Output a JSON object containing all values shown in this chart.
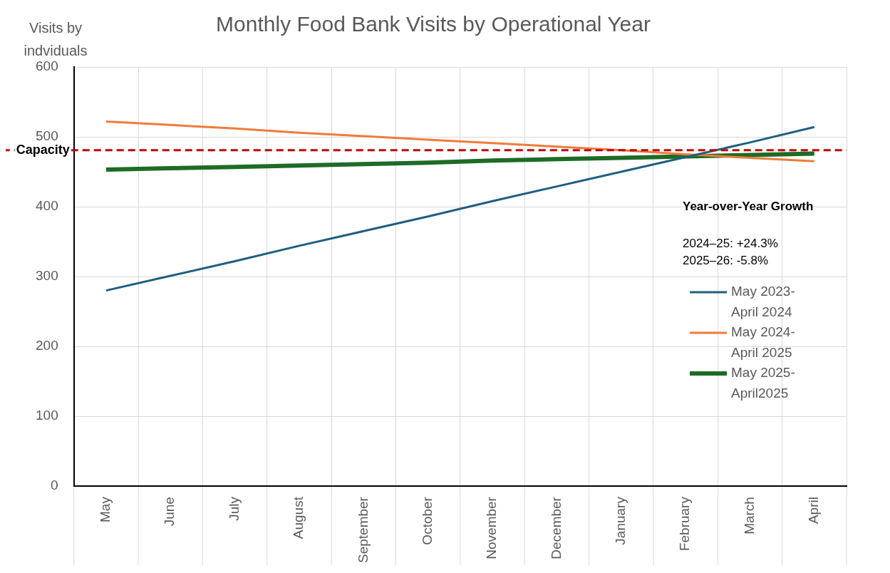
{
  "chart_data": {
    "type": "line",
    "title": "Monthly Food Bank Visits by Operational Year",
    "ylabel": "Visits by indviduals",
    "categories": [
      "May",
      "June",
      "July",
      "August",
      "September",
      "October",
      "November",
      "December",
      "January",
      "February",
      "March",
      "April"
    ],
    "series": [
      {
        "name": "May 2023-April 2024",
        "color": "#1f5f80",
        "values": [
          280,
          301,
          322,
          344,
          365,
          386,
          408,
          429,
          450,
          471,
          492,
          514
        ]
      },
      {
        "name": "May 2024-April 2025",
        "color": "#f07b3a",
        "values": [
          522,
          517,
          512,
          506,
          501,
          496,
          491,
          486,
          481,
          475,
          470,
          465
        ]
      },
      {
        "name": "May 2025-April2025",
        "color": "#1e6b26",
        "values": [
          453,
          455,
          457,
          459,
          461,
          463,
          466,
          468,
          470,
          472,
          474,
          476
        ]
      }
    ],
    "ylim": [
      0,
      600
    ],
    "yticks": [
      0,
      100,
      200,
      300,
      400,
      500,
      600
    ],
    "grid": true,
    "legend": "right",
    "marker": "none",
    "line_style": "solid",
    "ref_lines": [
      {
        "axis": "y",
        "value": 481,
        "label": "Capacity",
        "color": "#c00000",
        "line_style": "dashed"
      }
    ],
    "annotations": [
      "Year-over-Year Growth",
      "2024–25: +24.3%",
      "2025–26: -5.8%"
    ]
  }
}
